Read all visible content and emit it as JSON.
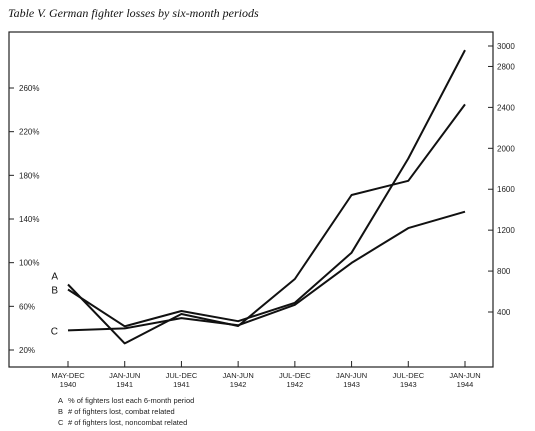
{
  "chart_data": {
    "type": "line",
    "title": "Table V. German fighter losses by six-month periods",
    "categories": [
      [
        "MAY-DEC",
        "1940"
      ],
      [
        "JAN-JUN",
        "1941"
      ],
      [
        "JUL-DEC",
        "1941"
      ],
      [
        "JAN-JUN",
        "1942"
      ],
      [
        "JUL-DEC",
        "1942"
      ],
      [
        "JAN-JUN",
        "1943"
      ],
      [
        "JUL-DEC",
        "1943"
      ],
      [
        "JAN-JUN",
        "1944"
      ]
    ],
    "y_left": {
      "ticks": [
        "20%",
        "60%",
        "100%",
        "140%",
        "180%",
        "220%",
        "260%"
      ],
      "range": [
        20,
        260
      ],
      "unit": "%"
    },
    "y_right": {
      "ticks": [
        "400",
        "800",
        "1200",
        "1600",
        "2000",
        "2400",
        "2800",
        "3000"
      ],
      "range": [
        400,
        3000
      ]
    },
    "series": [
      {
        "name": "A",
        "axis": "left",
        "values": [
          80,
          26,
          53,
          42,
          85,
          162,
          175,
          245
        ]
      },
      {
        "name": "B",
        "axis": "right",
        "values": [
          620,
          260,
          410,
          310,
          490,
          980,
          1900,
          2960
        ]
      },
      {
        "name": "C",
        "axis": "right",
        "values": [
          220,
          240,
          340,
          270,
          470,
          880,
          1220,
          1380
        ]
      }
    ],
    "legend": [
      {
        "key": "A",
        "text": "% of fighters lost each 6-month period"
      },
      {
        "key": "B",
        "text": "# of fighters lost, combat related"
      },
      {
        "key": "C",
        "text": "# of fighters lost, noncombat related"
      }
    ],
    "grid": false,
    "legend_position": "bottom-left"
  }
}
